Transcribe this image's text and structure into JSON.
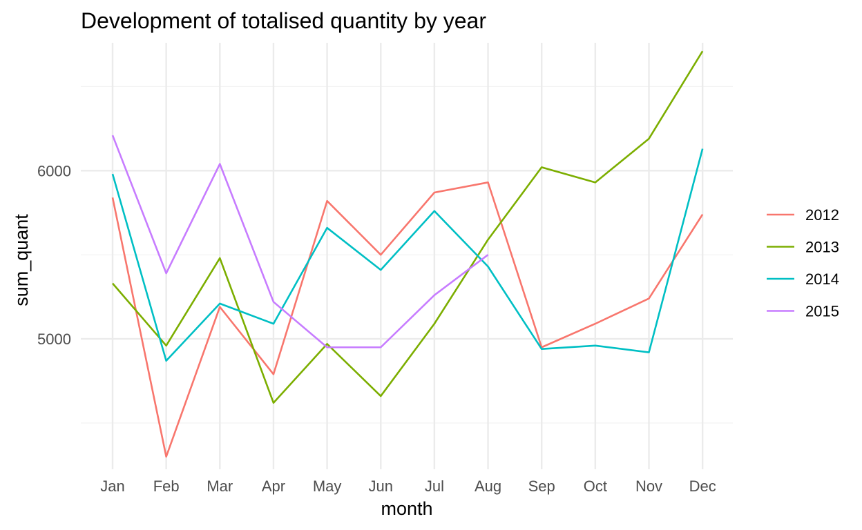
{
  "chart_data": {
    "type": "line",
    "title": "Development of totalised quantity by year",
    "xlabel": "month",
    "ylabel": "sum_quant",
    "categories": [
      "Jan",
      "Feb",
      "Mar",
      "Apr",
      "May",
      "Jun",
      "Jul",
      "Aug",
      "Sep",
      "Oct",
      "Nov",
      "Dec"
    ],
    "yticks": [
      5000,
      6000
    ],
    "ylim": [
      4225,
      6760
    ],
    "grid": true,
    "legend_position": "right",
    "series": [
      {
        "name": "2012",
        "color": "#F8766D",
        "values": [
          5840,
          4300,
          5190,
          4790,
          5820,
          5500,
          5870,
          5930,
          4950,
          5090,
          5240,
          5740
        ]
      },
      {
        "name": "2013",
        "color": "#7CAE00",
        "values": [
          5330,
          4960,
          5480,
          4620,
          4970,
          4660,
          5090,
          5590,
          6020,
          5930,
          6190,
          6710
        ]
      },
      {
        "name": "2014",
        "color": "#00BFC4",
        "values": [
          5980,
          4870,
          5210,
          5090,
          5660,
          5410,
          5760,
          5430,
          4940,
          4960,
          4920,
          6130
        ]
      },
      {
        "name": "2015",
        "color": "#C77CFF",
        "values": [
          6210,
          5390,
          6040,
          5220,
          4950,
          4950,
          5260,
          5500,
          null,
          null,
          null,
          null
        ]
      }
    ]
  }
}
